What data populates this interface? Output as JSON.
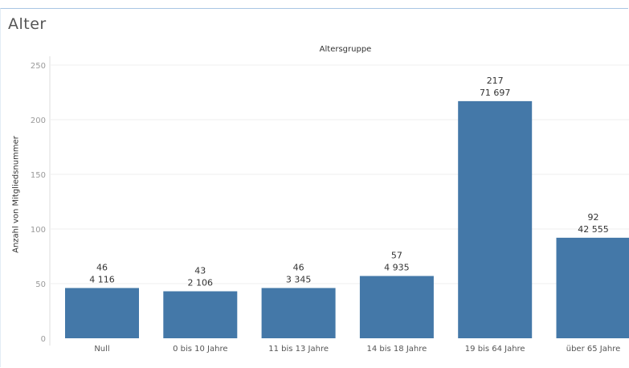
{
  "sheet": {
    "title": "Alter",
    "header": "Altersgruppe"
  },
  "chart_data": {
    "type": "bar",
    "title": "",
    "xlabel": "Altersgruppe",
    "ylabel": "Anzahl von Mitgliedsnummer",
    "ylim": [
      0,
      250
    ],
    "yticks": [
      "0",
      "50",
      "100",
      "150",
      "200",
      "250"
    ],
    "categories": [
      "Null",
      "0 bis 10 Jahre",
      "11 bis 13 Jahre",
      "14 bis 18 Jahre",
      "19 bis 64 Jahre",
      "über 65 Jahre"
    ],
    "values": [
      46,
      43,
      46,
      57,
      217,
      92
    ],
    "secondary_labels": [
      "4 116",
      "2 106",
      "3 345",
      "4 935",
      "71 697",
      "42 555"
    ],
    "value_labels": [
      "46",
      "43",
      "46",
      "57",
      "217",
      "92"
    ],
    "grid": true,
    "bar_color": "#4478a8"
  }
}
